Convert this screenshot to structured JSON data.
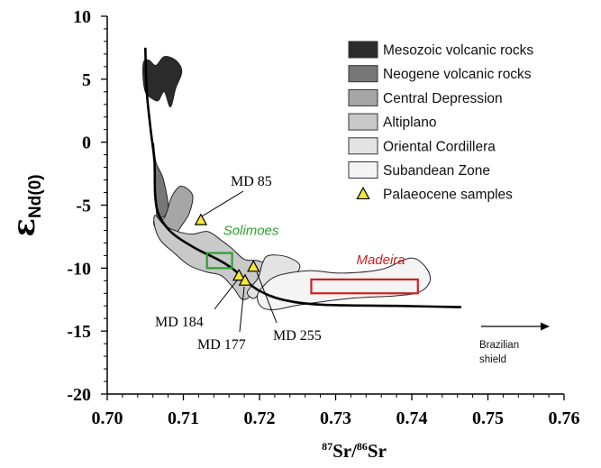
{
  "chart_data": {
    "type": "scatter",
    "xlabel": "87Sr/86Sr",
    "xlabel_parts": {
      "sup1": "87",
      "main1": "Sr/",
      "sup2": "86",
      "main2": "Sr"
    },
    "ylabel": "εNd(0)",
    "ylabel_parts": {
      "symbol": "ε",
      "sub": "Nd(0)"
    },
    "xlim": [
      0.7,
      0.76
    ],
    "ylim": [
      -20,
      10
    ],
    "x_ticks": [
      0.7,
      0.71,
      0.72,
      0.73,
      0.74,
      0.75,
      0.76
    ],
    "x_tick_labels": [
      "0.70",
      "0.71",
      "0.72",
      "0.73",
      "0.74",
      "0.75",
      "0.76"
    ],
    "y_ticks": [
      10,
      5,
      0,
      -5,
      -10,
      -15,
      -20
    ],
    "y_tick_labels": [
      "10",
      "5",
      "0",
      "-5",
      "-10",
      "-15",
      "-20"
    ],
    "grid": false,
    "legend_position": "top-right",
    "legend": [
      {
        "label": "Mesozoic volcanic rocks",
        "color": "#2b2b2b"
      },
      {
        "label": "Neogene volcanic rocks",
        "color": "#777777"
      },
      {
        "label": "Central Depression",
        "color": "#a6a6a6"
      },
      {
        "label": "Altiplano",
        "color": "#c9c9c9"
      },
      {
        "label": "Oriental Cordillera",
        "color": "#e3e3e3"
      },
      {
        "label": "Subandean Zone",
        "color": "#f4f4f4"
      },
      {
        "label": "Palaeocene samples",
        "color": "#f5e83a",
        "marker": "triangle"
      }
    ],
    "series": [
      {
        "name": "Palaeocene samples",
        "points": [
          {
            "label": "MD 85",
            "x": 0.7123,
            "y": -6.2
          },
          {
            "label": "MD 184",
            "x": 0.7173,
            "y": -10.6
          },
          {
            "label": "MD 177",
            "x": 0.7181,
            "y": -11.0
          },
          {
            "label": "MD 255",
            "x": 0.7192,
            "y": -9.9
          }
        ]
      }
    ],
    "reference_boxes": [
      {
        "label": "Solimoes",
        "color": "#2ca02c",
        "x": [
          0.7131,
          0.7164
        ],
        "y": [
          -10.0,
          -8.8
        ]
      },
      {
        "label": "Madeira",
        "color": "#d11f1f",
        "x": [
          0.7268,
          0.7408
        ],
        "y": [
          -12.0,
          -10.9
        ]
      }
    ],
    "arrow_label": "Brazilian shield",
    "arrow_label_lines": [
      "Brazilian",
      "shield"
    ],
    "fields": [
      {
        "name": "Mesozoic volcanic rocks",
        "color": "#2b2b2b",
        "polygon": [
          [
            0.7047,
            5.3
          ],
          [
            0.7048,
            6.4
          ],
          [
            0.7055,
            6.5
          ],
          [
            0.7064,
            6.1
          ],
          [
            0.7075,
            6.8
          ],
          [
            0.709,
            6.5
          ],
          [
            0.7098,
            5.6
          ],
          [
            0.709,
            4.3
          ],
          [
            0.7083,
            2.8
          ],
          [
            0.7075,
            4.0
          ],
          [
            0.7067,
            3.3
          ],
          [
            0.7058,
            3.5
          ],
          [
            0.705,
            4.0
          ]
        ]
      },
      {
        "name": "Neogene volcanic rocks",
        "color": "#777777",
        "polygon": [
          [
            0.7061,
            -0.1
          ],
          [
            0.7064,
            -1.6
          ],
          [
            0.7074,
            -3.0
          ],
          [
            0.708,
            -5.4
          ],
          [
            0.7067,
            -6.0
          ],
          [
            0.7064,
            -5.0
          ],
          [
            0.7062,
            -2.0
          ]
        ]
      },
      {
        "name": "Central Depression",
        "color": "#a6a6a6",
        "polygon": [
          [
            0.7062,
            -6.2
          ],
          [
            0.7075,
            -6.0
          ],
          [
            0.7085,
            -4.3
          ],
          [
            0.7097,
            -3.5
          ],
          [
            0.7112,
            -4.2
          ],
          [
            0.7108,
            -5.6
          ],
          [
            0.7098,
            -6.6
          ],
          [
            0.7085,
            -7.6
          ],
          [
            0.7072,
            -7.4
          ],
          [
            0.7063,
            -6.8
          ]
        ]
      },
      {
        "name": "Altiplano",
        "color": "#c9c9c9",
        "polygon": [
          [
            0.7063,
            -5.8
          ],
          [
            0.7075,
            -6.6
          ],
          [
            0.7093,
            -7.1
          ],
          [
            0.7112,
            -7.3
          ],
          [
            0.7132,
            -7.1
          ],
          [
            0.715,
            -7.8
          ],
          [
            0.7163,
            -8.4
          ],
          [
            0.718,
            -9.3
          ],
          [
            0.7197,
            -9.4
          ],
          [
            0.7212,
            -9.8
          ],
          [
            0.7216,
            -10.6
          ],
          [
            0.7202,
            -11.4
          ],
          [
            0.718,
            -12.5
          ],
          [
            0.7166,
            -11.6
          ],
          [
            0.715,
            -10.6
          ],
          [
            0.713,
            -10.3
          ],
          [
            0.7108,
            -9.8
          ],
          [
            0.7088,
            -8.8
          ],
          [
            0.707,
            -7.8
          ],
          [
            0.7062,
            -6.6
          ]
        ]
      },
      {
        "name": "Oriental Cordillera",
        "color": "#e3e3e3",
        "polygon": [
          [
            0.7184,
            -11.9
          ],
          [
            0.7198,
            -10.8
          ],
          [
            0.7204,
            -9.6
          ],
          [
            0.7212,
            -9.0
          ],
          [
            0.7236,
            -9.1
          ],
          [
            0.7253,
            -9.8
          ],
          [
            0.7242,
            -10.8
          ],
          [
            0.7222,
            -11.1
          ],
          [
            0.7204,
            -11.7
          ],
          [
            0.7193,
            -12.4
          ]
        ]
      },
      {
        "name": "Subandean Zone",
        "color": "#f4f4f4",
        "polygon": [
          [
            0.7197,
            -12.3
          ],
          [
            0.7204,
            -11.5
          ],
          [
            0.7224,
            -10.6
          ],
          [
            0.7266,
            -10.2
          ],
          [
            0.7306,
            -10.4
          ],
          [
            0.736,
            -10.1
          ],
          [
            0.7398,
            -9.2
          ],
          [
            0.7418,
            -9.9
          ],
          [
            0.7424,
            -11.0
          ],
          [
            0.741,
            -11.9
          ],
          [
            0.7378,
            -12.2
          ],
          [
            0.732,
            -12.4
          ],
          [
            0.7255,
            -12.9
          ],
          [
            0.722,
            -13.3
          ],
          [
            0.7203,
            -13.1
          ]
        ]
      }
    ],
    "mixing_curve": [
      [
        0.705,
        7.5
      ],
      [
        0.7052,
        4.0
      ],
      [
        0.7057,
        1.0
      ],
      [
        0.7062,
        -1.5
      ],
      [
        0.7063,
        -4.2
      ],
      [
        0.7068,
        -5.8
      ],
      [
        0.7085,
        -7.2
      ],
      [
        0.7115,
        -8.4
      ],
      [
        0.7148,
        -9.4
      ],
      [
        0.7168,
        -10.2
      ],
      [
        0.7182,
        -11.0
      ],
      [
        0.72,
        -11.8
      ],
      [
        0.723,
        -12.5
      ],
      [
        0.728,
        -12.9
      ],
      [
        0.738,
        -13.0
      ],
      [
        0.7465,
        -13.1
      ]
    ]
  }
}
